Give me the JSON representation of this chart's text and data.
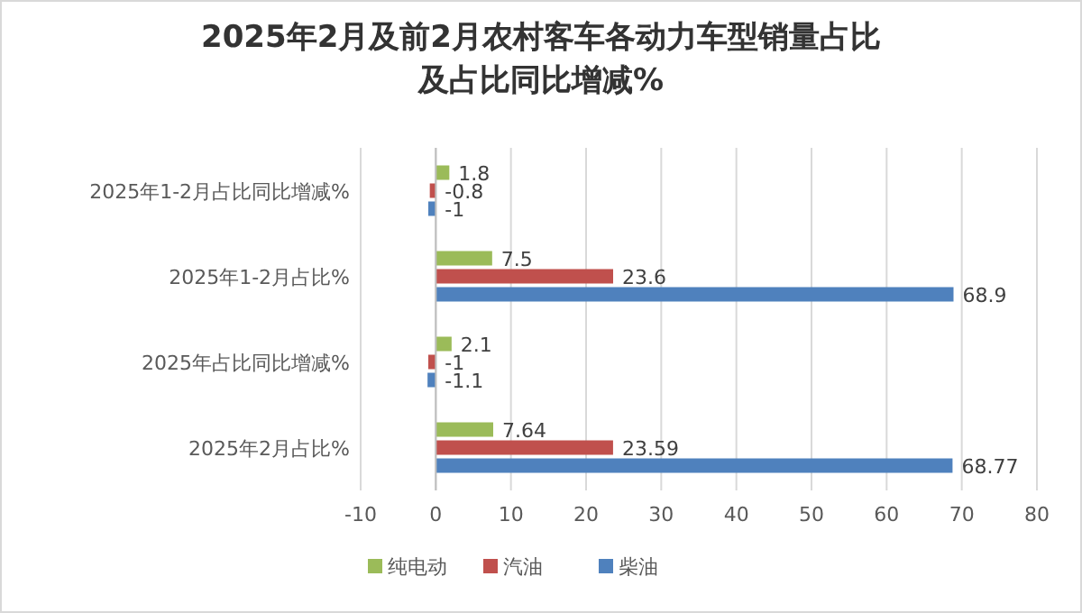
{
  "chart_data": {
    "type": "bar",
    "orientation": "horizontal",
    "title": "2025年2月及前2月农村客车各动力车型销量占比及占比同比增减%",
    "categories": [
      "2025年1-2月占比同比增减%",
      "2025年1-2月占比%",
      "2025年占比同比增减%",
      "2025年2月占比%"
    ],
    "series": [
      {
        "name": "纯电动",
        "color": "#9bbb59",
        "values": [
          1.8,
          7.5,
          2.1,
          7.64
        ]
      },
      {
        "name": "汽油",
        "color": "#c0504d",
        "values": [
          -0.8,
          23.6,
          -1,
          23.59
        ]
      },
      {
        "name": "柴油",
        "color": "#4f81bd",
        "values": [
          -1,
          68.9,
          -1.1,
          68.77
        ]
      }
    ],
    "xlim": [
      -10,
      80
    ],
    "xticks": [
      -10,
      0,
      10,
      20,
      30,
      40,
      50,
      60,
      70,
      80
    ],
    "grid": "x",
    "legend": "bottom",
    "data_labels": true
  }
}
